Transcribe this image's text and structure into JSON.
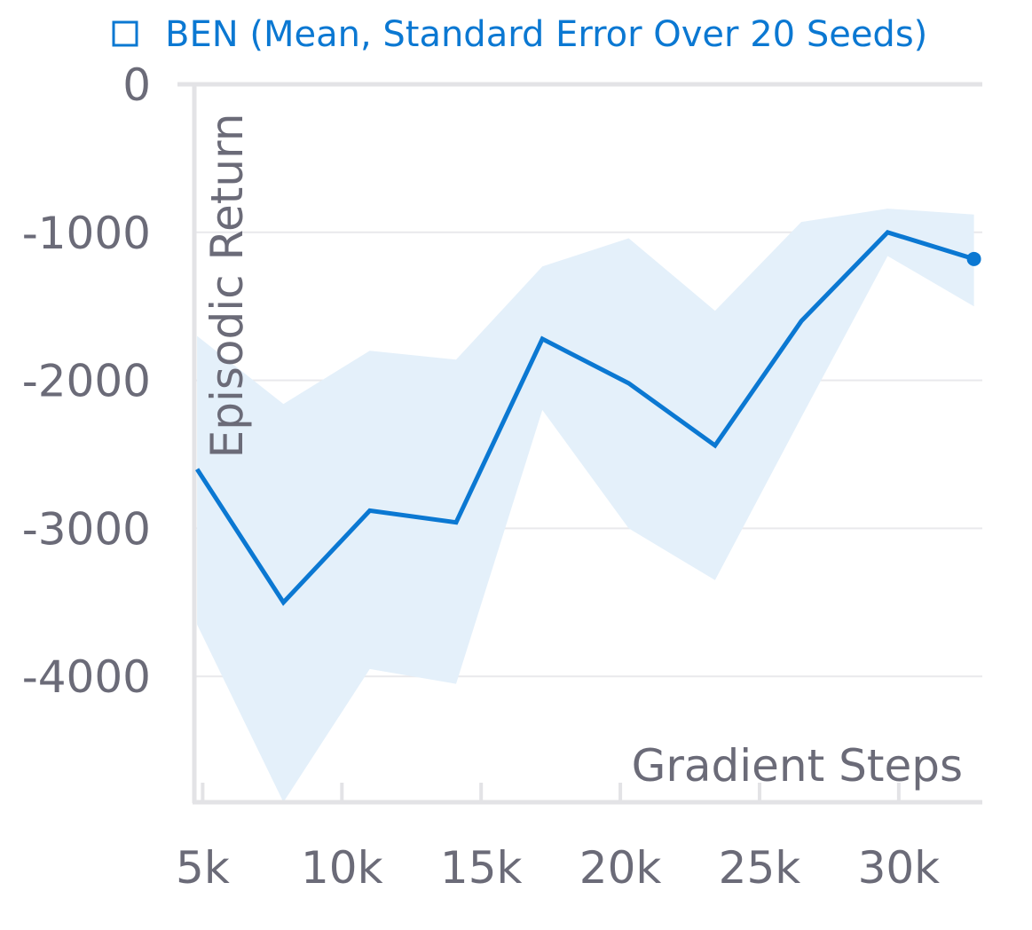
{
  "chart_data": {
    "type": "line",
    "xlabel": "Gradient Steps",
    "ylabel": "Episodic Return",
    "xlim": [
      4700,
      33000
    ],
    "ylim": [
      -4850,
      0
    ],
    "x_ticks": [
      5000,
      10000,
      15000,
      20000,
      25000,
      30000
    ],
    "x_tick_labels": [
      "5k",
      "10k",
      "15k",
      "20k",
      "25k",
      "30k"
    ],
    "y_ticks": [
      0,
      -1000,
      -2000,
      -3000,
      -4000
    ],
    "y_tick_labels": [
      "0",
      "-1000",
      "-2000",
      "-3000",
      "-4000"
    ],
    "grid": true,
    "legend": "top",
    "series": [
      {
        "name": "BEN (Mean, Standard Error Over 20 Seeds)",
        "color": "#0b78d2",
        "band_color": "#e4f0fa",
        "x": [
          4800,
          7900,
          11000,
          14100,
          17200,
          20300,
          23400,
          26500,
          29600,
          32700
        ],
        "y": [
          -2600,
          -3500,
          -2880,
          -2960,
          -1720,
          -2020,
          -2440,
          -1600,
          -1000,
          -1180
        ],
        "upper": [
          -1700,
          -2160,
          -1800,
          -1860,
          -1230,
          -1040,
          -1530,
          -930,
          -840,
          -880
        ],
        "lower": [
          -3650,
          -4850,
          -3950,
          -4050,
          -2200,
          -3000,
          -3350,
          -2250,
          -1160,
          -1500
        ]
      }
    ]
  }
}
